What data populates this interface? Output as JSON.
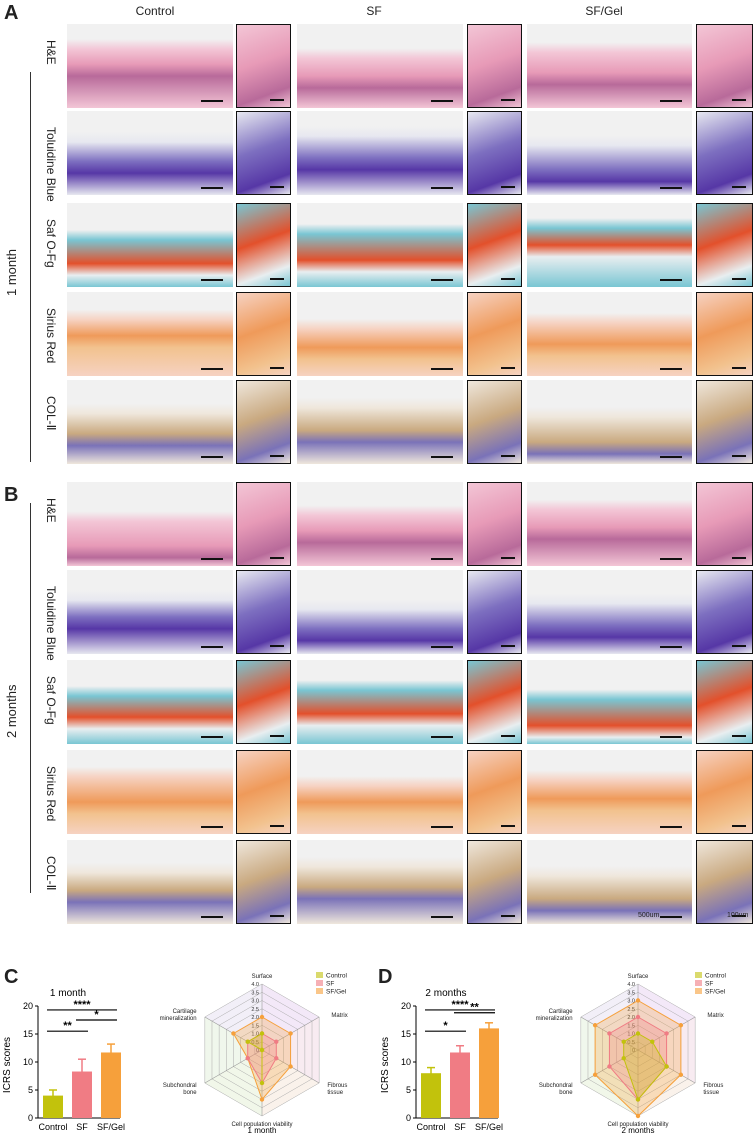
{
  "panels": {
    "A": "A",
    "B": "B",
    "C": "C",
    "D": "D"
  },
  "column_headers": [
    "Control",
    "SF",
    "SF/Gel"
  ],
  "stains": [
    "H&E",
    "Toluidine Blue",
    "Saf O-Fg",
    "Sirius Red",
    "COL-Ⅱ"
  ],
  "timepoints": {
    "a": "1 month",
    "b": "2 months"
  },
  "scale_labels": {
    "main": "500um",
    "inset": "100um"
  },
  "stain_colors": {
    "he": [
      "#f3c6d6",
      "#e79ab7",
      "#b86a9a"
    ],
    "tb": [
      "#e7e8f0",
      "#7d6fc0",
      "#5637a6"
    ],
    "saf": [
      "#79c6d3",
      "#e3502b",
      "#e8eef0"
    ],
    "sr": [
      "#f6d2c2",
      "#ef9a5a",
      "#f2c28e"
    ],
    "col": [
      "#efe7dc",
      "#c9a980",
      "#7a72b8"
    ]
  },
  "chart_data": [
    {
      "type": "bar",
      "title": "1 month",
      "ylabel": "ICRS scores",
      "categories": [
        "Control",
        "SF",
        "SF/Gel"
      ],
      "values": [
        4.0,
        8.3,
        11.7
      ],
      "errors": [
        1.0,
        2.2,
        1.5
      ],
      "colors": [
        "#c2c20c",
        "#f07c84",
        "#f6a03b"
      ],
      "ylim": [
        0,
        20
      ],
      "yticks": [
        "0",
        "5",
        "10",
        "15",
        "20"
      ],
      "significance": [
        {
          "label": "**",
          "from": "Control",
          "to": "SF"
        },
        {
          "label": "*",
          "from": "SF",
          "to": "SF/Gel"
        },
        {
          "label": "****",
          "from": "Control",
          "to": "SF/Gel"
        }
      ]
    },
    {
      "type": "radar",
      "title": "1 month",
      "axes": [
        "Surface",
        "Matrix",
        "Fibrous tissue",
        "Cell population viability",
        "Subchondral bone",
        "Cartilage mineralization"
      ],
      "ticks": [
        "0",
        "0.5",
        "1.0",
        "1.5",
        "2.0",
        "2.5",
        "3.0",
        "3.5",
        "4.0"
      ],
      "rmax": 4,
      "legend": [
        "Control",
        "SF",
        "SF/Gel"
      ],
      "series": [
        {
          "name": "Control",
          "color": "#c2c20c",
          "values": [
            1,
            0,
            0,
            2,
            0,
            1
          ]
        },
        {
          "name": "SF",
          "color": "#f07c84",
          "values": [
            1,
            1,
            1,
            2,
            1,
            1
          ]
        },
        {
          "name": "SF/Gel",
          "color": "#f6a03b",
          "values": [
            2,
            2,
            2,
            3,
            1,
            2
          ]
        }
      ]
    },
    {
      "type": "bar",
      "title": "2 months",
      "ylabel": "ICRS scores",
      "categories": [
        "Control",
        "SF",
        "SF/Gel"
      ],
      "values": [
        8.0,
        11.7,
        16.0
      ],
      "errors": [
        1.0,
        1.2,
        1.0
      ],
      "colors": [
        "#c2c20c",
        "#f07c84",
        "#f6a03b"
      ],
      "ylim": [
        0,
        20
      ],
      "yticks": [
        "0",
        "5",
        "10",
        "15",
        "20"
      ],
      "significance": [
        {
          "label": "*",
          "from": "Control",
          "to": "SF"
        },
        {
          "label": "**",
          "from": "SF",
          "to": "SF/Gel"
        },
        {
          "label": "****",
          "from": "Control",
          "to": "SF/Gel"
        }
      ]
    },
    {
      "type": "radar",
      "title": "2 months",
      "axes": [
        "Surface",
        "Matrix",
        "Fibrous tissue",
        "Cell population viability",
        "Subchondral bone",
        "Cartilage mineralization"
      ],
      "ticks": [
        "0",
        "0.5",
        "1.0",
        "1.5",
        "2.0",
        "2.5",
        "3.0",
        "3.5",
        "4.0"
      ],
      "rmax": 4,
      "legend": [
        "Control",
        "SF",
        "SF/Gel"
      ],
      "series": [
        {
          "name": "Control",
          "color": "#c2c20c",
          "values": [
            1,
            1,
            2,
            3,
            1,
            1
          ]
        },
        {
          "name": "SF",
          "color": "#f07c84",
          "values": [
            2,
            2,
            2,
            3,
            2,
            2
          ]
        },
        {
          "name": "SF/Gel",
          "color": "#f6a03b",
          "values": [
            3,
            3,
            3,
            4,
            3,
            3
          ]
        }
      ]
    }
  ]
}
